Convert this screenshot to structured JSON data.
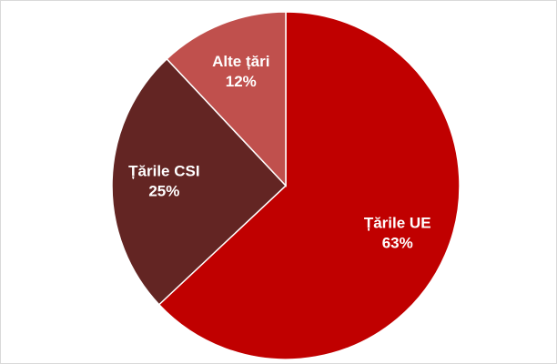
{
  "chart_data": {
    "type": "pie",
    "categories": [
      "Țările UE",
      "Țările CSI",
      "Alte țări"
    ],
    "values": [
      63,
      25,
      12
    ],
    "value_labels": [
      "63%",
      "25%",
      "12%"
    ],
    "colors": [
      "#c00000",
      "#632523",
      "#c0504d"
    ]
  }
}
